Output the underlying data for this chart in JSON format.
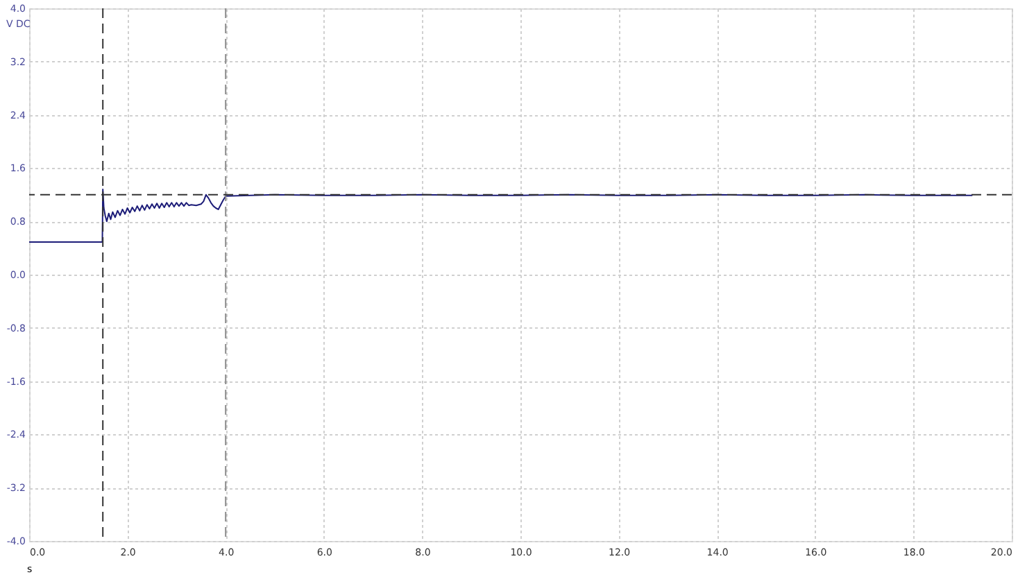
{
  "chart_data": {
    "type": "line",
    "xlabel": "s",
    "ylabel": "V DC",
    "x": [
      0,
      1.49,
      1.5,
      1.52,
      1.55,
      1.58,
      1.62,
      1.66,
      1.7,
      1.75,
      1.8,
      1.85,
      1.9,
      1.95,
      2.0,
      2.05,
      2.1,
      2.15,
      2.2,
      2.25,
      2.3,
      2.35,
      2.4,
      2.45,
      2.5,
      2.55,
      2.6,
      2.65,
      2.7,
      2.75,
      2.8,
      2.85,
      2.9,
      2.95,
      3.0,
      3.05,
      3.1,
      3.15,
      3.2,
      3.25,
      3.3,
      3.4,
      3.5,
      3.55,
      3.6,
      3.65,
      3.7,
      3.75,
      3.8,
      3.85,
      3.9,
      3.95,
      4.0,
      4.5,
      5,
      6,
      7,
      8,
      9,
      10,
      11,
      12,
      13,
      14,
      15,
      16,
      17,
      18,
      19,
      19.2
    ],
    "series": [
      {
        "color": "#1c1c78",
        "values": [
          0.49,
          0.49,
          1.28,
          1.0,
          0.88,
          0.8,
          0.92,
          0.83,
          0.94,
          0.86,
          0.96,
          0.89,
          0.98,
          0.91,
          1.0,
          0.93,
          1.01,
          0.95,
          1.03,
          0.96,
          1.04,
          0.97,
          1.05,
          0.99,
          1.06,
          1.0,
          1.07,
          1.0,
          1.07,
          1.01,
          1.08,
          1.02,
          1.08,
          1.02,
          1.08,
          1.03,
          1.08,
          1.03,
          1.08,
          1.04,
          1.05,
          1.04,
          1.06,
          1.1,
          1.2,
          1.15,
          1.08,
          1.03,
          1.0,
          0.98,
          1.05,
          1.12,
          1.18,
          1.19,
          1.2,
          1.19,
          1.19,
          1.2,
          1.19,
          1.19,
          1.2,
          1.19,
          1.19,
          1.2,
          1.19,
          1.19,
          1.2,
          1.19,
          1.19,
          1.19
        ]
      }
    ],
    "xlim": [
      0,
      20
    ],
    "xticks": [
      {
        "value": 0,
        "label": "0.0"
      },
      {
        "value": 2,
        "label": "2.0"
      },
      {
        "value": 4,
        "label": "4.0"
      },
      {
        "value": 6,
        "label": "6.0"
      },
      {
        "value": 8,
        "label": "8.0"
      },
      {
        "value": 10,
        "label": "10.0"
      },
      {
        "value": 12,
        "label": "12.0"
      },
      {
        "value": 14,
        "label": "14.0"
      },
      {
        "value": 16,
        "label": "16.0"
      },
      {
        "value": 18,
        "label": "18.0"
      },
      {
        "value": 20,
        "label": "20.0"
      }
    ],
    "ylim": [
      -4,
      4
    ],
    "yticks": [
      {
        "value": -4,
        "label": "-4.0"
      },
      {
        "value": -3.2,
        "label": "-3.2"
      },
      {
        "value": -2.4,
        "label": "-2.4"
      },
      {
        "value": -1.6,
        "label": "-1.6"
      },
      {
        "value": -0.8,
        "label": "-0.8"
      },
      {
        "value": 0,
        "label": "0.0"
      },
      {
        "value": 0.8,
        "label": "0.8"
      },
      {
        "value": 1.6,
        "label": "1.6"
      },
      {
        "value": 2.4,
        "label": "2.4"
      },
      {
        "value": 3.2,
        "label": "3.2"
      },
      {
        "value": 4,
        "label": "4.0"
      }
    ],
    "ref_lines": [
      {
        "axis": "x",
        "value": 1.5,
        "color": "#333333",
        "line_style": "dashed"
      },
      {
        "axis": "x",
        "value": 4.0,
        "color": "#8c8c8c",
        "line_style": "dashed"
      },
      {
        "axis": "y",
        "value": 1.2,
        "color": "#333333",
        "line_style": "dashed"
      }
    ],
    "grid": true,
    "marker": "none",
    "line_style": "solid"
  }
}
